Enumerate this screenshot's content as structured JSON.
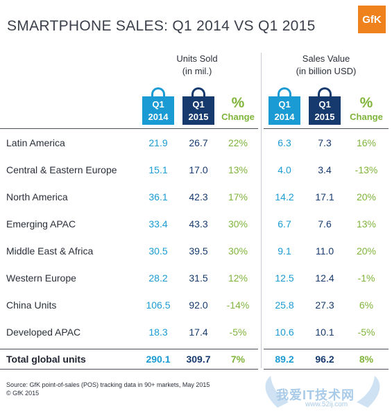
{
  "title": "SMARTPHONE SALES: Q1 2014 VS Q1 2015",
  "logo_text": "GfK",
  "groups": {
    "units": {
      "line1": "Units Sold",
      "line2": "(in mil.)"
    },
    "value": {
      "line1": "Sales Value",
      "line2": "(in billion USD)"
    }
  },
  "headers": {
    "q1_label": "Q1",
    "year_2014": "2014",
    "year_2015": "2015",
    "pct_symbol": "%",
    "pct_label": "Change"
  },
  "chart_data": {
    "type": "table",
    "title": "SMARTPHONE SALES: Q1 2014 VS Q1 2015",
    "columns": [
      "Units Sold Q1 2014",
      "Units Sold Q1 2015",
      "Units % Change",
      "Sales Value Q1 2014",
      "Sales Value Q1 2015",
      "Sales Value % Change"
    ],
    "rows": [
      {
        "region": "Latin America",
        "u14": "21.9",
        "u15": "26.7",
        "uchg": "22%",
        "v14": "6.3",
        "v15": "7.3",
        "vchg": "16%"
      },
      {
        "region": "Central & Eastern Europe",
        "u14": "15.1",
        "u15": "17.0",
        "uchg": "13%",
        "v14": "4.0",
        "v15": "3.4",
        "vchg": "-13%"
      },
      {
        "region": "North America",
        "u14": "36.1",
        "u15": "42.3",
        "uchg": "17%",
        "v14": "14.2",
        "v15": "17.1",
        "vchg": "20%"
      },
      {
        "region": "Emerging APAC",
        "u14": "33.4",
        "u15": "43.3",
        "uchg": "30%",
        "v14": "6.7",
        "v15": "7.6",
        "vchg": "13%"
      },
      {
        "region": "Middle East & Africa",
        "u14": "30.5",
        "u15": "39.5",
        "uchg": "30%",
        "v14": "9.1",
        "v15": "11.0",
        "vchg": "20%"
      },
      {
        "region": "Western Europe",
        "u14": "28.2",
        "u15": "31.5",
        "uchg": "12%",
        "v14": "12.5",
        "v15": "12.4",
        "vchg": "-1%"
      },
      {
        "region": "China Units",
        "u14": "106.5",
        "u15": "92.0",
        "uchg": "-14%",
        "v14": "25.8",
        "v15": "27.3",
        "vchg": "6%"
      },
      {
        "region": "Developed APAC",
        "u14": "18.3",
        "u15": "17.4",
        "uchg": "-5%",
        "v14": "10.6",
        "v15": "10.1",
        "vchg": "-5%"
      }
    ],
    "total": {
      "region": "Total global units",
      "u14": "290.1",
      "u15": "309.7",
      "uchg": "7%",
      "v14": "89.2",
      "v15": "96.2",
      "vchg": "8%"
    }
  },
  "source_line1": "Source: GfK point-of-sales (POS) tracking data in 90+ markets, May 2015",
  "source_line2": "© GfK 2015",
  "watermark": {
    "text": "我爱IT技术网",
    "url": "www.52ij.com"
  },
  "colors": {
    "q2014": "#1a9bd3",
    "q2015": "#163a6e",
    "change": "#7fb43a",
    "brand": "#f0821e"
  }
}
